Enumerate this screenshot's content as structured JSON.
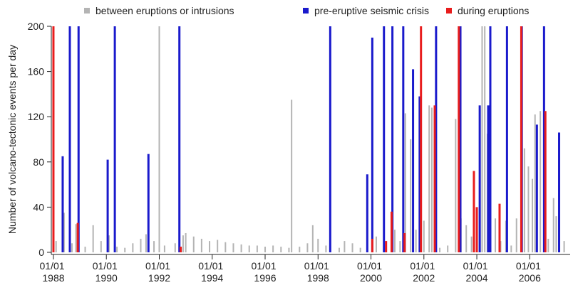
{
  "chart_data": {
    "type": "bar",
    "ylabel": "Number of volcano-tectonic events per day",
    "xlim": [
      1987.92,
      2007.5
    ],
    "ylim": [
      0,
      200
    ],
    "yticks": [
      0,
      40,
      80,
      120,
      160,
      200
    ],
    "xticks": [
      {
        "value": 1988,
        "label": "01/01 1988"
      },
      {
        "value": 1990,
        "label": "01/01 1990"
      },
      {
        "value": 1992,
        "label": "01/01 1992"
      },
      {
        "value": 1994,
        "label": "01/01 1994"
      },
      {
        "value": 1996,
        "label": "01/01 1996"
      },
      {
        "value": 1998,
        "label": "01/01 1998"
      },
      {
        "value": 2000,
        "label": "01/01 2000"
      },
      {
        "value": 2002,
        "label": "01/01 2002"
      },
      {
        "value": 2004,
        "label": "01/01 2004"
      },
      {
        "value": 2006,
        "label": "01/01 2006"
      }
    ],
    "legend": "top",
    "series": [
      {
        "name": "between eruptions or intrusions",
        "color": "#b4b4b4",
        "x": [
          1988.1,
          1988.4,
          1988.7,
          1988.85,
          1989.2,
          1989.5,
          1989.8,
          1990.1,
          1990.4,
          1990.7,
          1991.0,
          1991.3,
          1991.5,
          1991.8,
          1992.0,
          1992.2,
          1992.6,
          1992.9,
          1993.0,
          1993.3,
          1993.6,
          1993.9,
          1994.2,
          1994.5,
          1994.8,
          1995.1,
          1995.4,
          1995.7,
          1996.0,
          1996.3,
          1996.6,
          1996.9,
          1997.0,
          1997.3,
          1997.6,
          1997.8,
          1998.0,
          1998.3,
          1998.8,
          1999.0,
          1999.3,
          1999.6,
          2000.2,
          2000.9,
          2001.1,
          2001.3,
          2001.5,
          2001.7,
          2002.0,
          2002.2,
          2002.3,
          2002.6,
          2002.9,
          2003.2,
          2003.4,
          2003.6,
          2003.8,
          2004.1,
          2004.2,
          2004.3,
          2004.4,
          2004.7,
          2004.9,
          2005.1,
          2005.3,
          2005.5,
          2005.8,
          2005.95,
          2006.1,
          2006.2,
          2006.4,
          2006.7,
          2006.9,
          2007.0,
          2007.3
        ],
        "values": [
          10,
          35,
          8,
          25,
          5,
          24,
          10,
          15,
          5,
          4,
          8,
          12,
          16,
          10,
          200,
          6,
          8,
          15,
          17,
          14,
          12,
          10,
          11,
          9,
          8,
          7,
          6,
          6,
          5,
          6,
          5,
          4,
          135,
          5,
          8,
          24,
          12,
          6,
          4,
          10,
          8,
          4,
          14,
          20,
          10,
          123,
          100,
          20,
          28,
          130,
          128,
          4,
          6,
          118,
          30,
          24,
          14,
          40,
          200,
          200,
          105,
          30,
          10,
          28,
          6,
          30,
          92,
          76,
          65,
          122,
          125,
          12,
          48,
          32,
          10
        ]
      },
      {
        "name": "pre-eruptive seismic crisis",
        "color": "#1a1acc",
        "x": [
          1988.35,
          1988.62,
          1988.95,
          1990.05,
          1990.32,
          1991.59,
          1992.76,
          1998.46,
          1999.86,
          2000.05,
          2000.49,
          2000.81,
          2001.22,
          2001.59,
          2001.84,
          2002.46,
          2003.38,
          2004.11,
          2004.43,
          2004.51,
          2005.14,
          2005.7,
          2006.27,
          2006.54,
          2007.11
        ],
        "values": [
          85,
          200,
          200,
          82,
          200,
          87,
          200,
          200,
          69,
          190,
          200,
          200,
          200,
          162,
          138,
          200,
          200,
          130,
          130,
          200,
          200,
          200,
          113,
          200,
          106
        ]
      },
      {
        "name": "during eruptions",
        "color": "#e81c1c",
        "x": [
          1988.0,
          1988.92,
          1992.81,
          2000.05,
          2000.57,
          2000.78,
          2001.27,
          2001.89,
          2002.41,
          2003.32,
          2003.89,
          2004.0,
          2004.86,
          2005.68,
          2006.59
        ],
        "values": [
          200,
          26,
          5,
          12,
          10,
          36,
          17,
          200,
          130,
          200,
          72,
          40,
          43,
          200,
          125
        ]
      }
    ]
  }
}
